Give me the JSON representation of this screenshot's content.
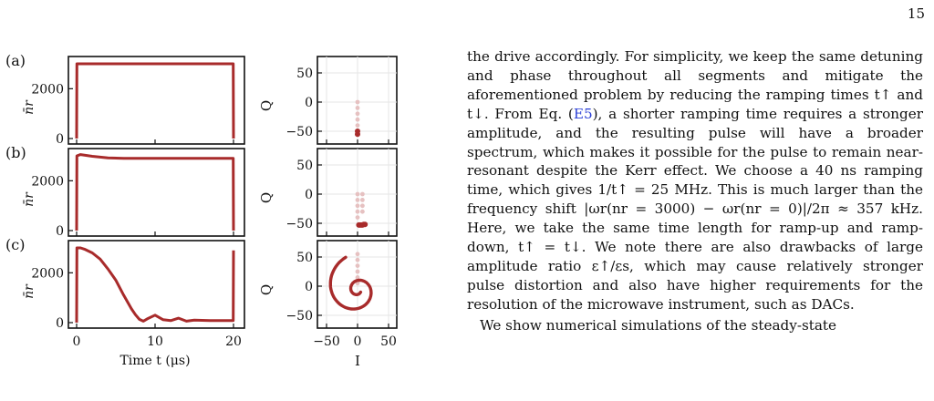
{
  "page_number": "15",
  "colors": {
    "curve": "#a82b2b",
    "spiral_light": "#e6c1c1",
    "axis": "#111111",
    "grid": "#e6e6e6",
    "link": "#2a3fd6"
  },
  "figure": {
    "time_axis_label": "Time t (μs)",
    "time_ticks": [
      "0",
      "10",
      "20"
    ],
    "nr_label": "n̄r",
    "iq_xlabel": "I",
    "iq_ylabel": "Q",
    "iq_x_ticks": [
      "−50",
      "0",
      "50"
    ],
    "panels": [
      {
        "label": "(a)",
        "y_ticks": [
          "0",
          "2000"
        ],
        "q_ticks": [
          "50",
          "0",
          "−50"
        ]
      },
      {
        "label": "(b)",
        "y_ticks": [
          "0",
          "2000"
        ],
        "q_ticks": [
          "50",
          "0",
          "−50"
        ]
      },
      {
        "label": "(c)",
        "y_ticks": [
          "0",
          "2000"
        ],
        "q_ticks": [
          "50",
          "0",
          "−50"
        ]
      }
    ]
  },
  "chart_data": [
    {
      "type": "line",
      "panel": "(a)",
      "xlabel": "Time t (μs)",
      "ylabel": "n̄r",
      "xlim": [
        0,
        20
      ],
      "ylim": [
        0,
        3000
      ],
      "x": [
        0,
        0.04,
        10,
        19.96,
        20
      ],
      "y": [
        0,
        3000,
        3000,
        3000,
        0
      ]
    },
    {
      "type": "scatter",
      "panel": "(a)",
      "xlabel": "I",
      "ylabel": "Q",
      "xlim": [
        -60,
        60
      ],
      "ylim": [
        -60,
        60
      ],
      "x": [
        0,
        0,
        0,
        0,
        0,
        0,
        0
      ],
      "y": [
        0,
        -10,
        -20,
        -30,
        -40,
        -50,
        -55
      ]
    },
    {
      "type": "line",
      "panel": "(b)",
      "xlabel": "Time t (μs)",
      "ylabel": "n̄r",
      "xlim": [
        0,
        20
      ],
      "ylim": [
        0,
        3000
      ],
      "x": [
        0,
        0.04,
        0.5,
        2,
        4,
        6,
        10,
        15,
        19.96,
        20
      ],
      "y": [
        0,
        3000,
        3050,
        2980,
        2920,
        2900,
        2900,
        2900,
        2900,
        0
      ]
    },
    {
      "type": "scatter",
      "panel": "(b)",
      "xlabel": "I",
      "ylabel": "Q",
      "xlim": [
        -60,
        60
      ],
      "ylim": [
        -60,
        60
      ],
      "x": [
        0,
        8,
        0,
        8,
        0,
        8,
        0,
        8,
        0,
        2,
        4,
        6,
        8,
        10,
        12
      ],
      "y": [
        0,
        0,
        -10,
        -10,
        -20,
        -20,
        -30,
        -30,
        -40,
        -53,
        -53,
        -53,
        -53,
        -52,
        -52
      ]
    },
    {
      "type": "line",
      "panel": "(c)",
      "xlabel": "Time t (μs)",
      "ylabel": "n̄r",
      "xlim": [
        0,
        20
      ],
      "ylim": [
        0,
        3000
      ],
      "x": [
        0,
        0.04,
        0.5,
        1,
        2,
        3,
        4,
        5,
        6,
        7,
        7.5,
        8,
        8.5,
        9,
        10,
        11,
        12,
        13,
        14,
        15,
        17,
        19.96,
        20
      ],
      "y": [
        0,
        3000,
        3000,
        2950,
        2800,
        2550,
        2150,
        1700,
        1100,
        550,
        320,
        130,
        60,
        150,
        300,
        120,
        80,
        180,
        60,
        100,
        80,
        80,
        2900
      ]
    },
    {
      "type": "scatter",
      "panel": "(c)",
      "xlabel": "I",
      "ylabel": "Q",
      "xlim": [
        -60,
        60
      ],
      "ylim": [
        -60,
        60
      ],
      "x": [
        0,
        0,
        0,
        0,
        0,
        0
      ],
      "y": [
        55,
        45,
        35,
        25,
        15,
        5
      ]
    }
  ],
  "text": {
    "para1_segments": [
      "the drive accordingly. For simplicity, we keep the same detuning and phase throughout all segments and mitigate the aforementioned problem by reducing the ramping times t↑ and t↓. From Eq. (",
      "E5",
      "), a shorter ramping time requires a stronger amplitude, and the resulting pulse will have a broader spectrum, which makes it possible for the pulse to remain near-resonant despite the Kerr effect. We choose a 40 ns ramping time, which gives 1/t↑ = 25 MHz. This is much larger than the frequency shift |ωr(nr = 3000) − ωr(nr = 0)|/2π ≈ 357 kHz. Here, we take the same time length for ramp-up and ramp-down, t↑ = t↓. We note there are also drawbacks of large amplitude ratio ε↑/εs, which may cause relatively stronger pulse distortion and also have higher requirements for the resolution of the microwave instrument, such as DACs."
    ],
    "para2": "We show numerical simulations of the steady-state"
  }
}
